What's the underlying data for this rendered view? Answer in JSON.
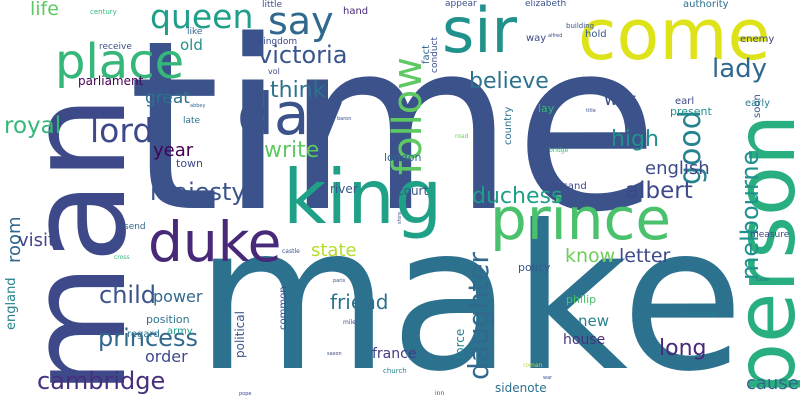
{
  "words": [
    {
      "text": "time",
      "color": "#3b528b"
    },
    {
      "text": "make",
      "color": "#2c728e"
    },
    {
      "text": "man",
      "color": "#3e4989"
    },
    {
      "text": "come",
      "color": "#dde318"
    },
    {
      "text": "king",
      "color": "#1fa187"
    },
    {
      "text": "person",
      "color": "#29af7f"
    },
    {
      "text": "sir",
      "color": "#21918c"
    },
    {
      "text": "prince",
      "color": "#4ac16d"
    },
    {
      "text": "day",
      "color": "#3b528b"
    },
    {
      "text": "duke",
      "color": "#482878"
    },
    {
      "text": "place",
      "color": "#35b779"
    },
    {
      "text": "queen",
      "color": "#1f9e89"
    },
    {
      "text": "say",
      "color": "#31688e"
    },
    {
      "text": "follow",
      "color": "#5ec962"
    },
    {
      "text": "lord",
      "color": "#3e4989"
    },
    {
      "text": "victoria",
      "color": "#39568c"
    },
    {
      "text": "believe",
      "color": "#2c728e"
    },
    {
      "text": "lady",
      "color": "#31688e"
    },
    {
      "text": "good",
      "color": "#26828e"
    },
    {
      "text": "melbourne",
      "color": "#21918c"
    },
    {
      "text": "majesty",
      "color": "#3b528b"
    },
    {
      "text": "duchess",
      "color": "#1f9e89"
    },
    {
      "text": "albert",
      "color": "#3e4989"
    },
    {
      "text": "royal",
      "color": "#35b779"
    },
    {
      "text": "think",
      "color": "#2c728e"
    },
    {
      "text": "write",
      "color": "#5ec962"
    },
    {
      "text": "year",
      "color": "#440154"
    },
    {
      "text": "high",
      "color": "#21918c"
    },
    {
      "text": "english",
      "color": "#3e4989"
    },
    {
      "text": "child",
      "color": "#3b528b"
    },
    {
      "text": "princess",
      "color": "#31688e"
    },
    {
      "text": "cambridge",
      "color": "#472f7d"
    },
    {
      "text": "friend",
      "color": "#2c728e"
    },
    {
      "text": "daughter",
      "color": "#31688e"
    },
    {
      "text": "know",
      "color": "#6ece58"
    },
    {
      "text": "letter",
      "color": "#3e4989"
    },
    {
      "text": "state",
      "color": "#b5de2b"
    },
    {
      "text": "room",
      "color": "#31688e"
    },
    {
      "text": "visit",
      "color": "#414487"
    },
    {
      "text": "life",
      "color": "#5ec962"
    },
    {
      "text": "great",
      "color": "#2c728e"
    },
    {
      "text": "war",
      "color": "#3b528b"
    },
    {
      "text": "long",
      "color": "#482878"
    },
    {
      "text": "cause",
      "color": "#31688e"
    },
    {
      "text": "power",
      "color": "#31688e"
    },
    {
      "text": "order",
      "color": "#3e4989"
    },
    {
      "text": "new",
      "color": "#26828e"
    },
    {
      "text": "house",
      "color": "#46337e"
    },
    {
      "text": "france",
      "color": "#443983"
    },
    {
      "text": "old",
      "color": "#21918c"
    },
    {
      "text": "parliament",
      "color": "#440154"
    },
    {
      "text": "england",
      "color": "#26828e"
    },
    {
      "text": "court",
      "color": "#39568c"
    },
    {
      "text": "town",
      "color": "#3e4989"
    },
    {
      "text": "river",
      "color": "#39568c"
    },
    {
      "text": "army",
      "color": "#1f9e89"
    },
    {
      "text": "position",
      "color": "#2c728e"
    },
    {
      "text": "political",
      "color": "#3b528b"
    },
    {
      "text": "force",
      "color": "#26828e"
    },
    {
      "text": "philip",
      "color": "#4ac16d"
    },
    {
      "text": "country",
      "color": "#2c728e"
    },
    {
      "text": "london",
      "color": "#31688e"
    },
    {
      "text": "thousand",
      "color": "#3e4989"
    },
    {
      "text": "sidenote",
      "color": "#2c728e"
    },
    {
      "text": "policy",
      "color": "#39568c"
    },
    {
      "text": "common",
      "color": "#3e4989"
    },
    {
      "text": "regard",
      "color": "#2c728e"
    },
    {
      "text": "early",
      "color": "#26828e"
    },
    {
      "text": "soon",
      "color": "#39568c"
    },
    {
      "text": "present",
      "color": "#21918c"
    },
    {
      "text": "earl",
      "color": "#3e4989"
    },
    {
      "text": "lay",
      "color": "#35b779"
    },
    {
      "text": "hold",
      "color": "#39568c"
    },
    {
      "text": "enemy",
      "color": "#3e4989"
    },
    {
      "text": "authority",
      "color": "#2c728e"
    },
    {
      "text": "kingdom",
      "color": "#3e4989"
    },
    {
      "text": "fact",
      "color": "#31688e"
    },
    {
      "text": "conduct",
      "color": "#3b528b"
    },
    {
      "text": "appear",
      "color": "#3b528b"
    },
    {
      "text": "elizabeth",
      "color": "#3b528b"
    },
    {
      "text": "hand",
      "color": "#482878"
    },
    {
      "text": "little",
      "color": "#3b528b"
    },
    {
      "text": "like",
      "color": "#31688e"
    },
    {
      "text": "receive",
      "color": "#3b528b"
    },
    {
      "text": "century",
      "color": "#35b779"
    },
    {
      "text": "way",
      "color": "#3e4989"
    },
    {
      "text": "building",
      "color": "#3b528b"
    },
    {
      "text": "vol",
      "color": "#3e4989"
    },
    {
      "text": "late",
      "color": "#2c728e"
    },
    {
      "text": "send",
      "color": "#31688e"
    },
    {
      "text": "measure",
      "color": "#3e4989"
    },
    {
      "text": "castle",
      "color": "#3b528b"
    },
    {
      "text": "hall",
      "color": "#3b528b"
    },
    {
      "text": "cross",
      "color": "#35b779"
    },
    {
      "text": "mile",
      "color": "#3b528b"
    },
    {
      "text": "bridge",
      "color": "#35b779"
    },
    {
      "text": "church",
      "color": "#26828e"
    },
    {
      "text": "illustration",
      "color": "#26828e"
    },
    {
      "text": "inn",
      "color": "#3e4989"
    },
    {
      "text": "roman",
      "color": "#b5de2b"
    },
    {
      "text": "road",
      "color": "#6ece58"
    },
    {
      "text": "saxon",
      "color": "#3e4989"
    },
    {
      "text": "paris",
      "color": "#3b528b"
    },
    {
      "text": "pope",
      "color": "#3e4989"
    },
    {
      "text": "baron",
      "color": "#3b528b"
    },
    {
      "text": "abbey",
      "color": "#31688e"
    },
    {
      "text": "title",
      "color": "#3b528b"
    },
    {
      "text": "shire",
      "color": "#3b528b"
    },
    {
      "text": "alfred",
      "color": "#3e4989"
    },
    {
      "text": "war",
      "color": "#3b528b"
    },
    {
      "text": "viii",
      "color": "#3e4989"
    },
    {
      "text": "tower",
      "color": "#2c728e"
    }
  ]
}
